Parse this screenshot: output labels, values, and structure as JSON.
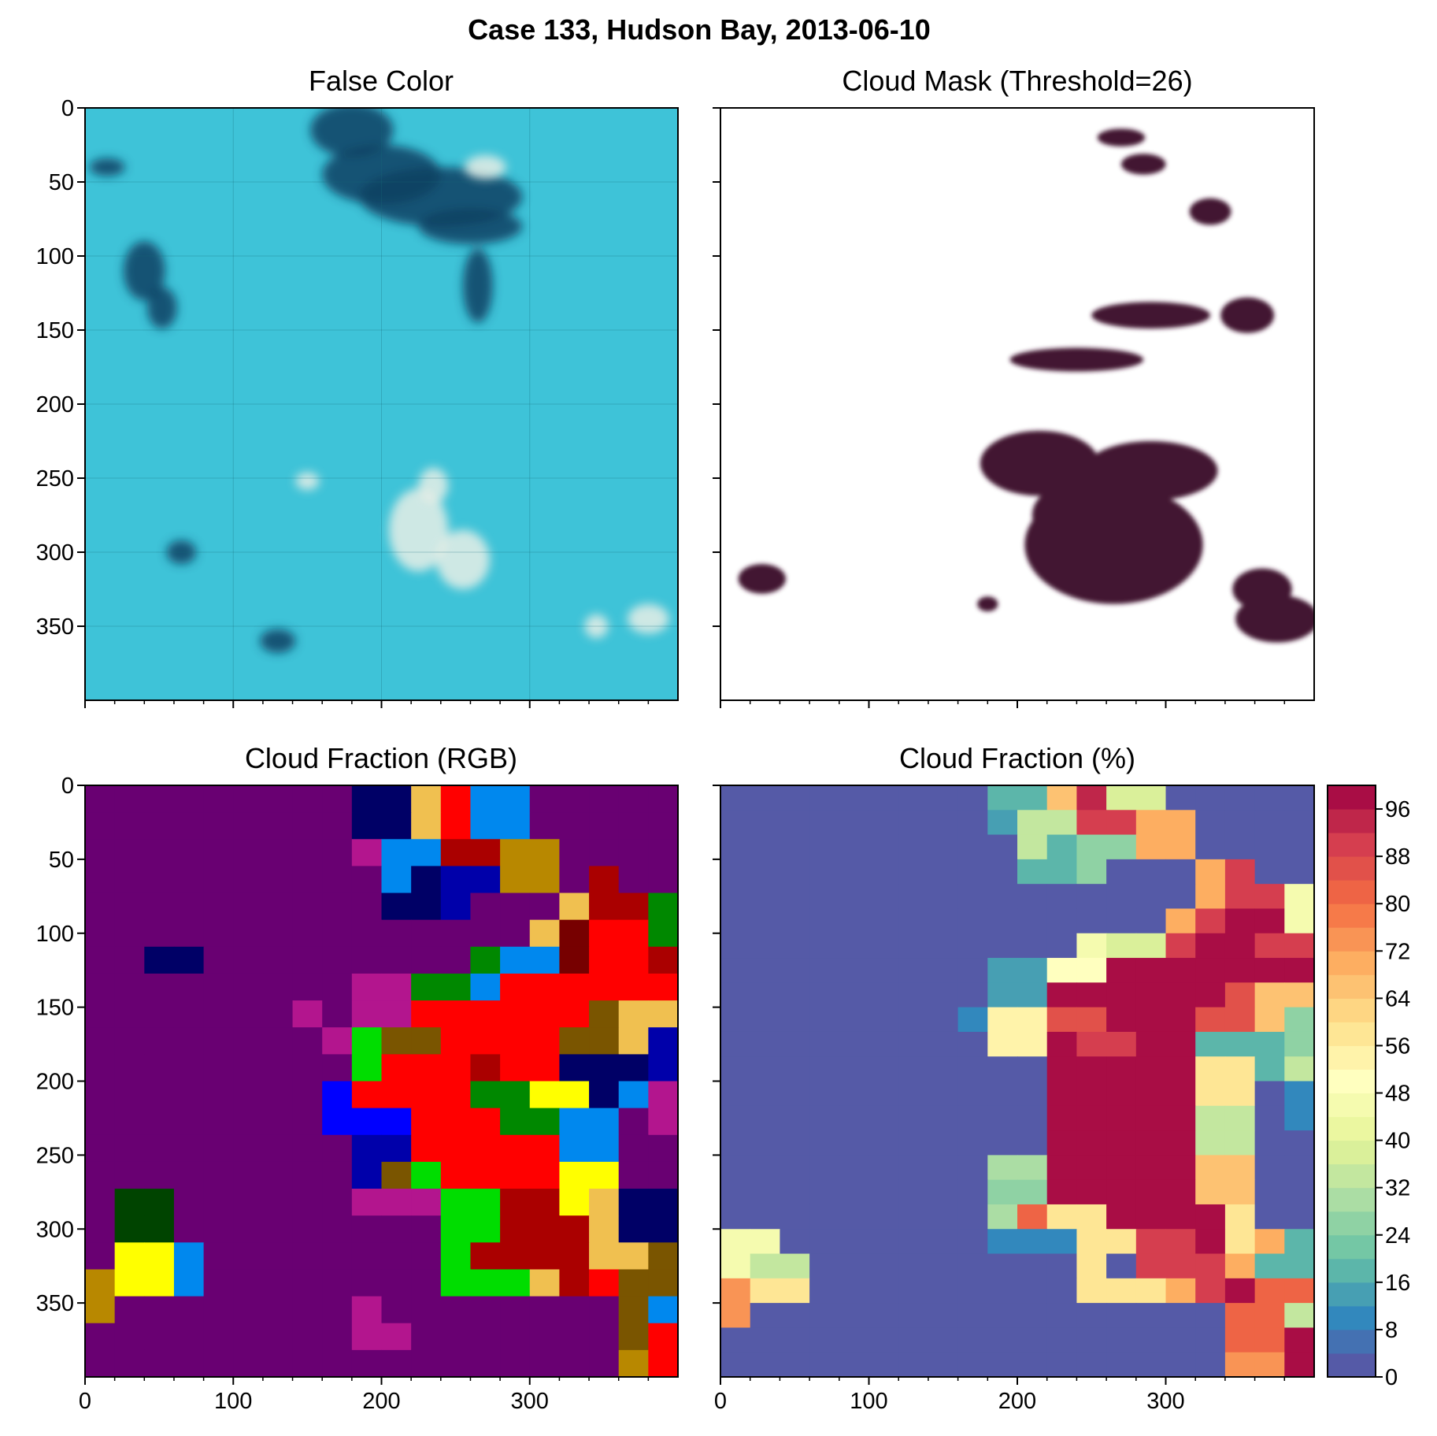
{
  "figure": {
    "title": "Case 133, Hudson Bay, 2013-06-10"
  },
  "colors": {
    "cloud": "#431731",
    "clear": "#ffffff",
    "rgb_background": "#690072",
    "cf_background": "#5c4fa2"
  },
  "chart_data": [
    {
      "type": "heatmap",
      "panel": "false-color",
      "title": "False Color",
      "xlim": [
        0,
        400
      ],
      "ylim": [
        400,
        0
      ],
      "xticks": [],
      "yticks": [
        0,
        50,
        100,
        150,
        200,
        250,
        300,
        350
      ],
      "image": "false color satellite composite, cyan sea ice with dark blue open water and whitish clouds",
      "ice_color": "#3ec3d8",
      "water_color": "#123f63",
      "cloud_color": "#e8efe6",
      "water_patches": [
        {
          "x": 180,
          "y": 15,
          "rx": 28,
          "ry": 18
        },
        {
          "x": 200,
          "y": 45,
          "rx": 40,
          "ry": 20
        },
        {
          "x": 240,
          "y": 60,
          "rx": 55,
          "ry": 20
        },
        {
          "x": 260,
          "y": 80,
          "rx": 35,
          "ry": 12
        },
        {
          "x": 265,
          "y": 120,
          "rx": 10,
          "ry": 25
        },
        {
          "x": 40,
          "y": 110,
          "rx": 14,
          "ry": 20
        },
        {
          "x": 52,
          "y": 135,
          "rx": 10,
          "ry": 14
        },
        {
          "x": 15,
          "y": 40,
          "rx": 12,
          "ry": 6
        },
        {
          "x": 65,
          "y": 300,
          "rx": 10,
          "ry": 8
        },
        {
          "x": 130,
          "y": 360,
          "rx": 12,
          "ry": 8
        }
      ],
      "cloud_patches": [
        {
          "x": 225,
          "y": 285,
          "rx": 20,
          "ry": 28
        },
        {
          "x": 255,
          "y": 305,
          "rx": 18,
          "ry": 20
        },
        {
          "x": 235,
          "y": 255,
          "rx": 10,
          "ry": 12
        },
        {
          "x": 150,
          "y": 252,
          "rx": 8,
          "ry": 6
        },
        {
          "x": 380,
          "y": 345,
          "rx": 14,
          "ry": 10
        },
        {
          "x": 345,
          "y": 350,
          "rx": 8,
          "ry": 8
        },
        {
          "x": 270,
          "y": 40,
          "rx": 14,
          "ry": 8
        }
      ]
    },
    {
      "type": "heatmap",
      "panel": "cloud-mask",
      "title": "Cloud Mask (Threshold=26)",
      "threshold": 26,
      "xlim": [
        0,
        400
      ],
      "ylim": [
        400,
        0
      ],
      "cloud_regions": [
        {
          "x": 265,
          "y": 295,
          "rx": 60,
          "ry": 40
        },
        {
          "x": 215,
          "y": 240,
          "rx": 40,
          "ry": 22
        },
        {
          "x": 290,
          "y": 245,
          "rx": 45,
          "ry": 20
        },
        {
          "x": 250,
          "y": 275,
          "rx": 40,
          "ry": 25
        },
        {
          "x": 365,
          "y": 325,
          "rx": 20,
          "ry": 14
        },
        {
          "x": 375,
          "y": 345,
          "rx": 28,
          "ry": 16
        },
        {
          "x": 28,
          "y": 318,
          "rx": 16,
          "ry": 10
        },
        {
          "x": 290,
          "y": 140,
          "rx": 40,
          "ry": 9
        },
        {
          "x": 240,
          "y": 170,
          "rx": 45,
          "ry": 8
        },
        {
          "x": 355,
          "y": 140,
          "rx": 18,
          "ry": 12
        },
        {
          "x": 270,
          "y": 20,
          "rx": 16,
          "ry": 6
        },
        {
          "x": 285,
          "y": 38,
          "rx": 15,
          "ry": 7
        },
        {
          "x": 330,
          "y": 70,
          "rx": 14,
          "ry": 9
        },
        {
          "x": 180,
          "y": 335,
          "rx": 7,
          "ry": 5
        }
      ]
    },
    {
      "type": "heatmap",
      "panel": "cloud-fraction-rgb",
      "title": "Cloud Fraction (RGB)",
      "xlim": [
        0,
        400
      ],
      "ylim": [
        400,
        0
      ],
      "xticks": [
        0,
        100,
        200,
        300
      ],
      "yticks": [
        0,
        50,
        100,
        150,
        200,
        250,
        300,
        350
      ],
      "cell_size": 20,
      "color_legend": {
        "P": "#690072",
        "M": "#b3158e",
        "N": "#000066",
        "K": "#0000ff",
        "D": "#0000aa",
        "L": "#0088ee",
        "G": "#008800",
        "g": "#00dd00",
        "d": "#004400",
        "R": "#ff0000",
        "r": "#aa0000",
        "m": "#770000",
        "Y": "#ffff00",
        "o": "#f0c050",
        "b": "#b88800",
        "B": "#7a5500"
      },
      "rows": [
        "PPPPPPPPPNNoRLLPPPPP",
        "PPPPPPPPPNNoRLLPPPPP",
        "PPPPPPPPPMLLrrbbPPPP",
        "PPPPPPPPPPLNDDbbPrPP",
        "PPPPPPPPPPNNDPPPorrG",
        "PPPPPPPPPPPPPPPomRRG",
        "PPNNPPPPPPPPPGLLmRRr",
        "PPPPPPPPPMMGGLRRRRRR",
        "PPPPPPPMPMMRRRRRRBoo",
        "PPPPPPPPMgBBRRRRBBoD",
        "PPPPPPPPPgRRRrRRNNND",
        "PPPPPPPPKRRRRGGYYNLM",
        "PPPPPPPPKKKRRRGGLLPM",
        "PPPPPPPPPDDRRRRRLLPP",
        "PPPPPPPPPDBgRRRRYYPP",
        "PddPPPPPPMMMggrrYoNN",
        "PddPPPPPPPPPggrrroNN",
        "PYYLPPPPPPPPgrrrrooB",
        "bYYLPPPPPPPPgggorRBB",
        "bPPPPPPPPMPPPPPPPPBL",
        "PPPPPPPPPMMPPPPPPPBR",
        "PPPPPPPPPPPPPPPPPPbR"
      ]
    },
    {
      "type": "heatmap",
      "panel": "cloud-fraction-pct",
      "title": "Cloud Fraction (%)",
      "xlim": [
        0,
        400
      ],
      "ylim": [
        400,
        0
      ],
      "xticks": [
        0,
        100,
        200,
        300
      ],
      "cell_size": 20,
      "colorbar": {
        "ticks": [
          0,
          8,
          16,
          24,
          32,
          40,
          48,
          56,
          64,
          72,
          80,
          88,
          96
        ],
        "vmin": 0,
        "vmax": 100,
        "levels": 25,
        "colormap": "Spectral_r",
        "colormap_stops": [
          "#5e4fa2",
          "#3288bd",
          "#66c2a5",
          "#abdda4",
          "#e6f598",
          "#ffffbf",
          "#fee08b",
          "#fdae61",
          "#f46d43",
          "#d53e4f",
          "#9e0142"
        ]
      },
      "rows": [
        [
          0,
          0,
          0,
          0,
          0,
          0,
          0,
          0,
          0,
          16,
          16,
          64,
          92,
          36,
          36,
          0,
          0,
          0,
          0,
          0
        ],
        [
          0,
          0,
          0,
          0,
          0,
          0,
          0,
          0,
          0,
          12,
          32,
          32,
          88,
          88,
          68,
          68,
          0,
          0,
          0,
          0
        ],
        [
          0,
          0,
          0,
          0,
          0,
          0,
          0,
          0,
          0,
          0,
          32,
          16,
          24,
          24,
          68,
          68,
          0,
          0,
          0,
          0
        ],
        [
          0,
          0,
          0,
          0,
          0,
          0,
          0,
          0,
          0,
          0,
          16,
          16,
          24,
          0,
          0,
          0,
          68,
          88,
          0,
          0
        ],
        [
          0,
          0,
          0,
          0,
          0,
          0,
          0,
          0,
          0,
          0,
          0,
          0,
          0,
          0,
          0,
          0,
          68,
          88,
          88,
          44
        ],
        [
          0,
          0,
          0,
          0,
          0,
          0,
          0,
          0,
          0,
          0,
          0,
          0,
          0,
          0,
          0,
          68,
          88,
          98,
          98,
          44
        ],
        [
          0,
          0,
          0,
          0,
          0,
          0,
          0,
          0,
          0,
          0,
          0,
          0,
          44,
          36,
          36,
          88,
          98,
          98,
          88,
          88
        ],
        [
          0,
          0,
          0,
          0,
          0,
          0,
          0,
          0,
          0,
          12,
          12,
          48,
          48,
          98,
          98,
          98,
          98,
          98,
          98,
          98
        ],
        [
          0,
          0,
          0,
          0,
          0,
          0,
          0,
          0,
          0,
          12,
          12,
          98,
          98,
          98,
          98,
          98,
          98,
          84,
          64,
          64
        ],
        [
          0,
          0,
          0,
          0,
          0,
          0,
          0,
          0,
          8,
          52,
          52,
          84,
          84,
          98,
          98,
          98,
          84,
          84,
          64,
          24
        ],
        [
          0,
          0,
          0,
          0,
          0,
          0,
          0,
          0,
          0,
          52,
          52,
          98,
          88,
          88,
          98,
          98,
          16,
          16,
          16,
          24
        ],
        [
          0,
          0,
          0,
          0,
          0,
          0,
          0,
          0,
          0,
          0,
          0,
          98,
          98,
          98,
          98,
          98,
          56,
          56,
          16,
          32
        ],
        [
          0,
          0,
          0,
          0,
          0,
          0,
          0,
          0,
          0,
          0,
          0,
          98,
          98,
          98,
          98,
          98,
          56,
          56,
          0,
          8
        ],
        [
          0,
          0,
          0,
          0,
          0,
          0,
          0,
          0,
          0,
          0,
          0,
          98,
          98,
          98,
          98,
          98,
          32,
          32,
          0,
          8
        ],
        [
          0,
          0,
          0,
          0,
          0,
          0,
          0,
          0,
          0,
          0,
          0,
          98,
          98,
          98,
          98,
          98,
          32,
          32,
          0,
          0
        ],
        [
          0,
          0,
          0,
          0,
          0,
          0,
          0,
          0,
          0,
          28,
          28,
          98,
          98,
          98,
          98,
          98,
          64,
          64,
          0,
          0
        ],
        [
          0,
          0,
          0,
          0,
          0,
          0,
          0,
          0,
          0,
          24,
          24,
          98,
          98,
          98,
          98,
          98,
          64,
          64,
          0,
          0
        ],
        [
          0,
          0,
          0,
          0,
          0,
          0,
          0,
          0,
          0,
          28,
          80,
          56,
          56,
          98,
          98,
          98,
          98,
          56,
          0,
          0
        ],
        [
          44,
          44,
          0,
          0,
          0,
          0,
          0,
          0,
          0,
          8,
          8,
          8,
          56,
          56,
          88,
          88,
          98,
          56,
          68,
          16
        ],
        [
          44,
          32,
          32,
          0,
          0,
          0,
          0,
          0,
          0,
          0,
          0,
          0,
          56,
          0,
          88,
          88,
          88,
          68,
          16,
          16
        ],
        [
          72,
          56,
          56,
          0,
          0,
          0,
          0,
          0,
          0,
          0,
          0,
          0,
          56,
          56,
          56,
          68,
          88,
          98,
          80,
          80
        ],
        [
          72,
          0,
          0,
          0,
          0,
          0,
          0,
          0,
          0,
          0,
          0,
          0,
          0,
          0,
          0,
          0,
          0,
          80,
          80,
          32
        ],
        [
          0,
          0,
          0,
          0,
          0,
          0,
          0,
          0,
          0,
          0,
          0,
          0,
          0,
          0,
          0,
          0,
          0,
          80,
          80,
          98
        ],
        [
          0,
          0,
          0,
          0,
          0,
          0,
          0,
          0,
          0,
          0,
          0,
          0,
          0,
          0,
          0,
          0,
          0,
          72,
          72,
          98
        ]
      ]
    }
  ]
}
